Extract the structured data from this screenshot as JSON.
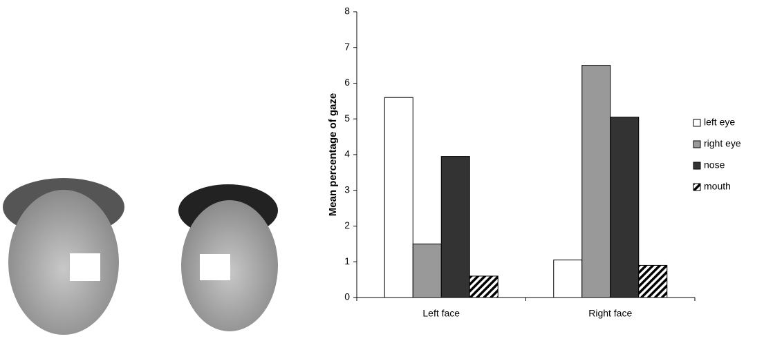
{
  "chart_data": {
    "type": "bar",
    "y_label": "Mean percentage of gaze",
    "categories": [
      "Left face",
      "Right face"
    ],
    "series": [
      {
        "name": "left eye",
        "color": "#ffffff",
        "values": [
          5.6,
          1.05
        ]
      },
      {
        "name": "right eye",
        "color": "#999999",
        "values": [
          1.5,
          6.5
        ]
      },
      {
        "name": "nose",
        "color": "#333333",
        "values": [
          3.95,
          5.05
        ]
      },
      {
        "name": "mouth",
        "color": "#000000",
        "pattern": "hatch",
        "values": [
          0.6,
          0.9
        ]
      }
    ],
    "ylim": [
      0,
      8
    ],
    "yticks": [
      0,
      1,
      2,
      3,
      4,
      5,
      6,
      7,
      8
    ],
    "grid": false,
    "legend": "right"
  }
}
